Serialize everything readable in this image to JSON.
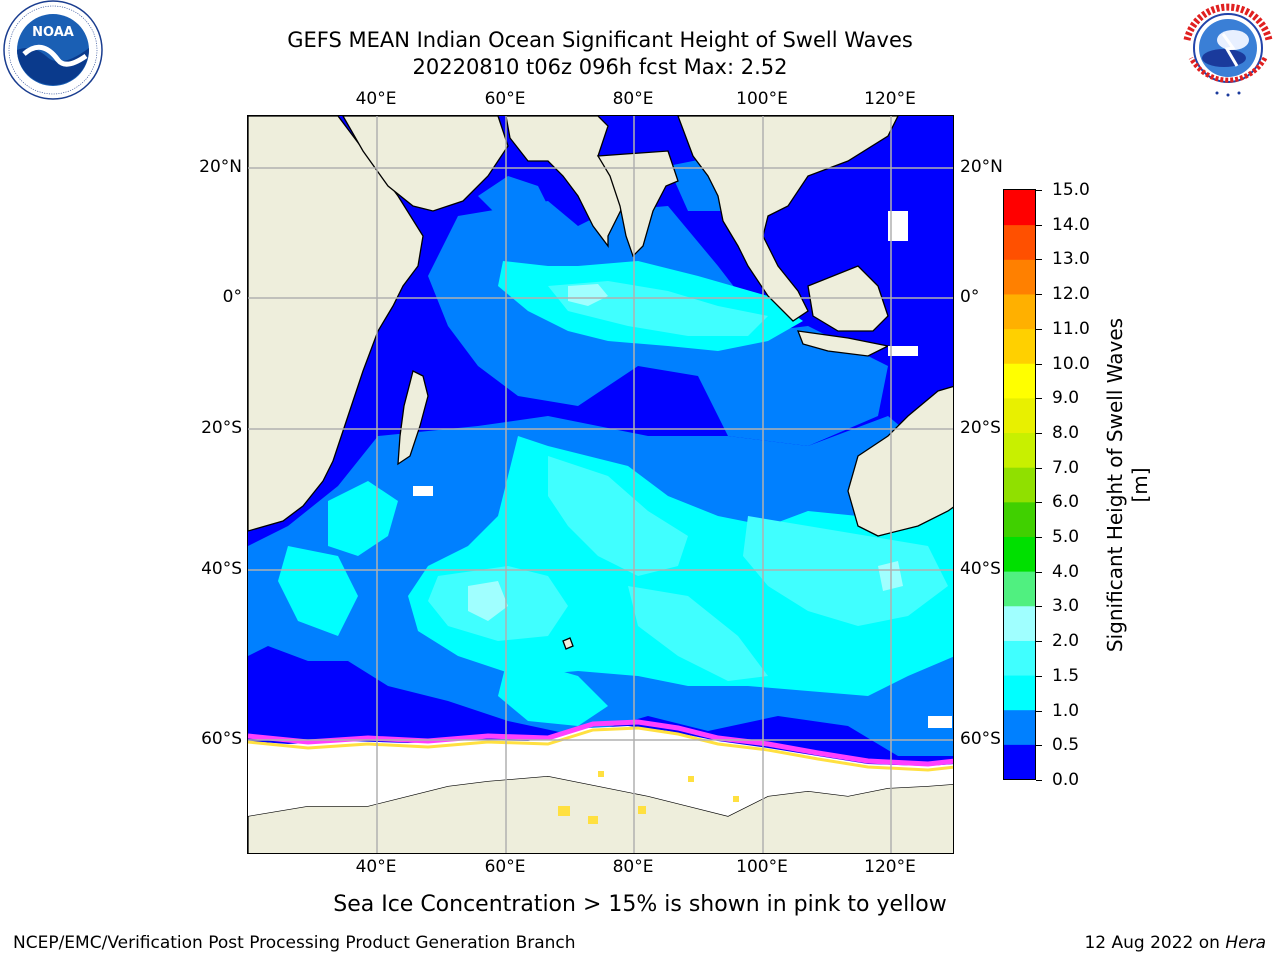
{
  "title_line1": "GEFS MEAN Indian Ocean Significant Height of Swell Waves",
  "title_line2": "20220810 t06z 096h fcst   Max: 2.52",
  "logos": {
    "left": {
      "text": "NOAA",
      "ring_text": "NATIONAL OCEANIC AND ATMOSPHERIC ADMINISTRATION · U.S. DEPARTMENT OF COMMERCE"
    },
    "right": {
      "ring_text": "NATIONAL WEATHER SERVICE"
    }
  },
  "map": {
    "lon_ticks": [
      "40°E",
      "60°E",
      "80°E",
      "100°E",
      "120°E"
    ],
    "lat_ticks": [
      "20°N",
      "0°",
      "20°S",
      "40°S",
      "60°S"
    ],
    "colors": {
      "land": "#eeeedc",
      "sea_ice": "#ffffff",
      "ocean_deep": "#0000ff",
      "ocean_mid": "#0080ff",
      "ocean_light": "#00ffff",
      "ocean_lighter": "#40ffff",
      "ocean_lightest": "#a0ffff",
      "ice_edge_pink": "#ff40ff",
      "ice_edge_yellow": "#ffe040"
    }
  },
  "colorbar": {
    "title": "Significant Height of Swell Waves [m]",
    "labels": [
      "15.0",
      "14.0",
      "13.0",
      "12.0",
      "11.0",
      "10.0",
      "9.0",
      "8.0",
      "7.0",
      "6.0",
      "5.0",
      "4.0",
      "3.0",
      "2.0",
      "1.5",
      "1.0",
      "0.5",
      "0.0"
    ],
    "levels": [
      0.0,
      0.5,
      1.0,
      1.5,
      2.0,
      3.0,
      4.0,
      5.0,
      6.0,
      7.0,
      8.0,
      9.0,
      10.0,
      11.0,
      12.0,
      13.0,
      14.0,
      15.0
    ],
    "colors": [
      "#0000ff",
      "#0080ff",
      "#00ffff",
      "#40ffff",
      "#a0ffff",
      "#50f080",
      "#00e000",
      "#40d000",
      "#90e000",
      "#c8f000",
      "#e8f000",
      "#ffff00",
      "#ffd000",
      "#ffb000",
      "#ff8000",
      "#ff5000",
      "#ff0000"
    ]
  },
  "subcaption": "Sea Ice Concentration > 15% is shown in pink to yellow",
  "credit": "NCEP/EMC/Verification Post Processing Product Generation Branch",
  "datestamp": {
    "date": "12 Aug 2022 on",
    "machine": "Hera"
  }
}
